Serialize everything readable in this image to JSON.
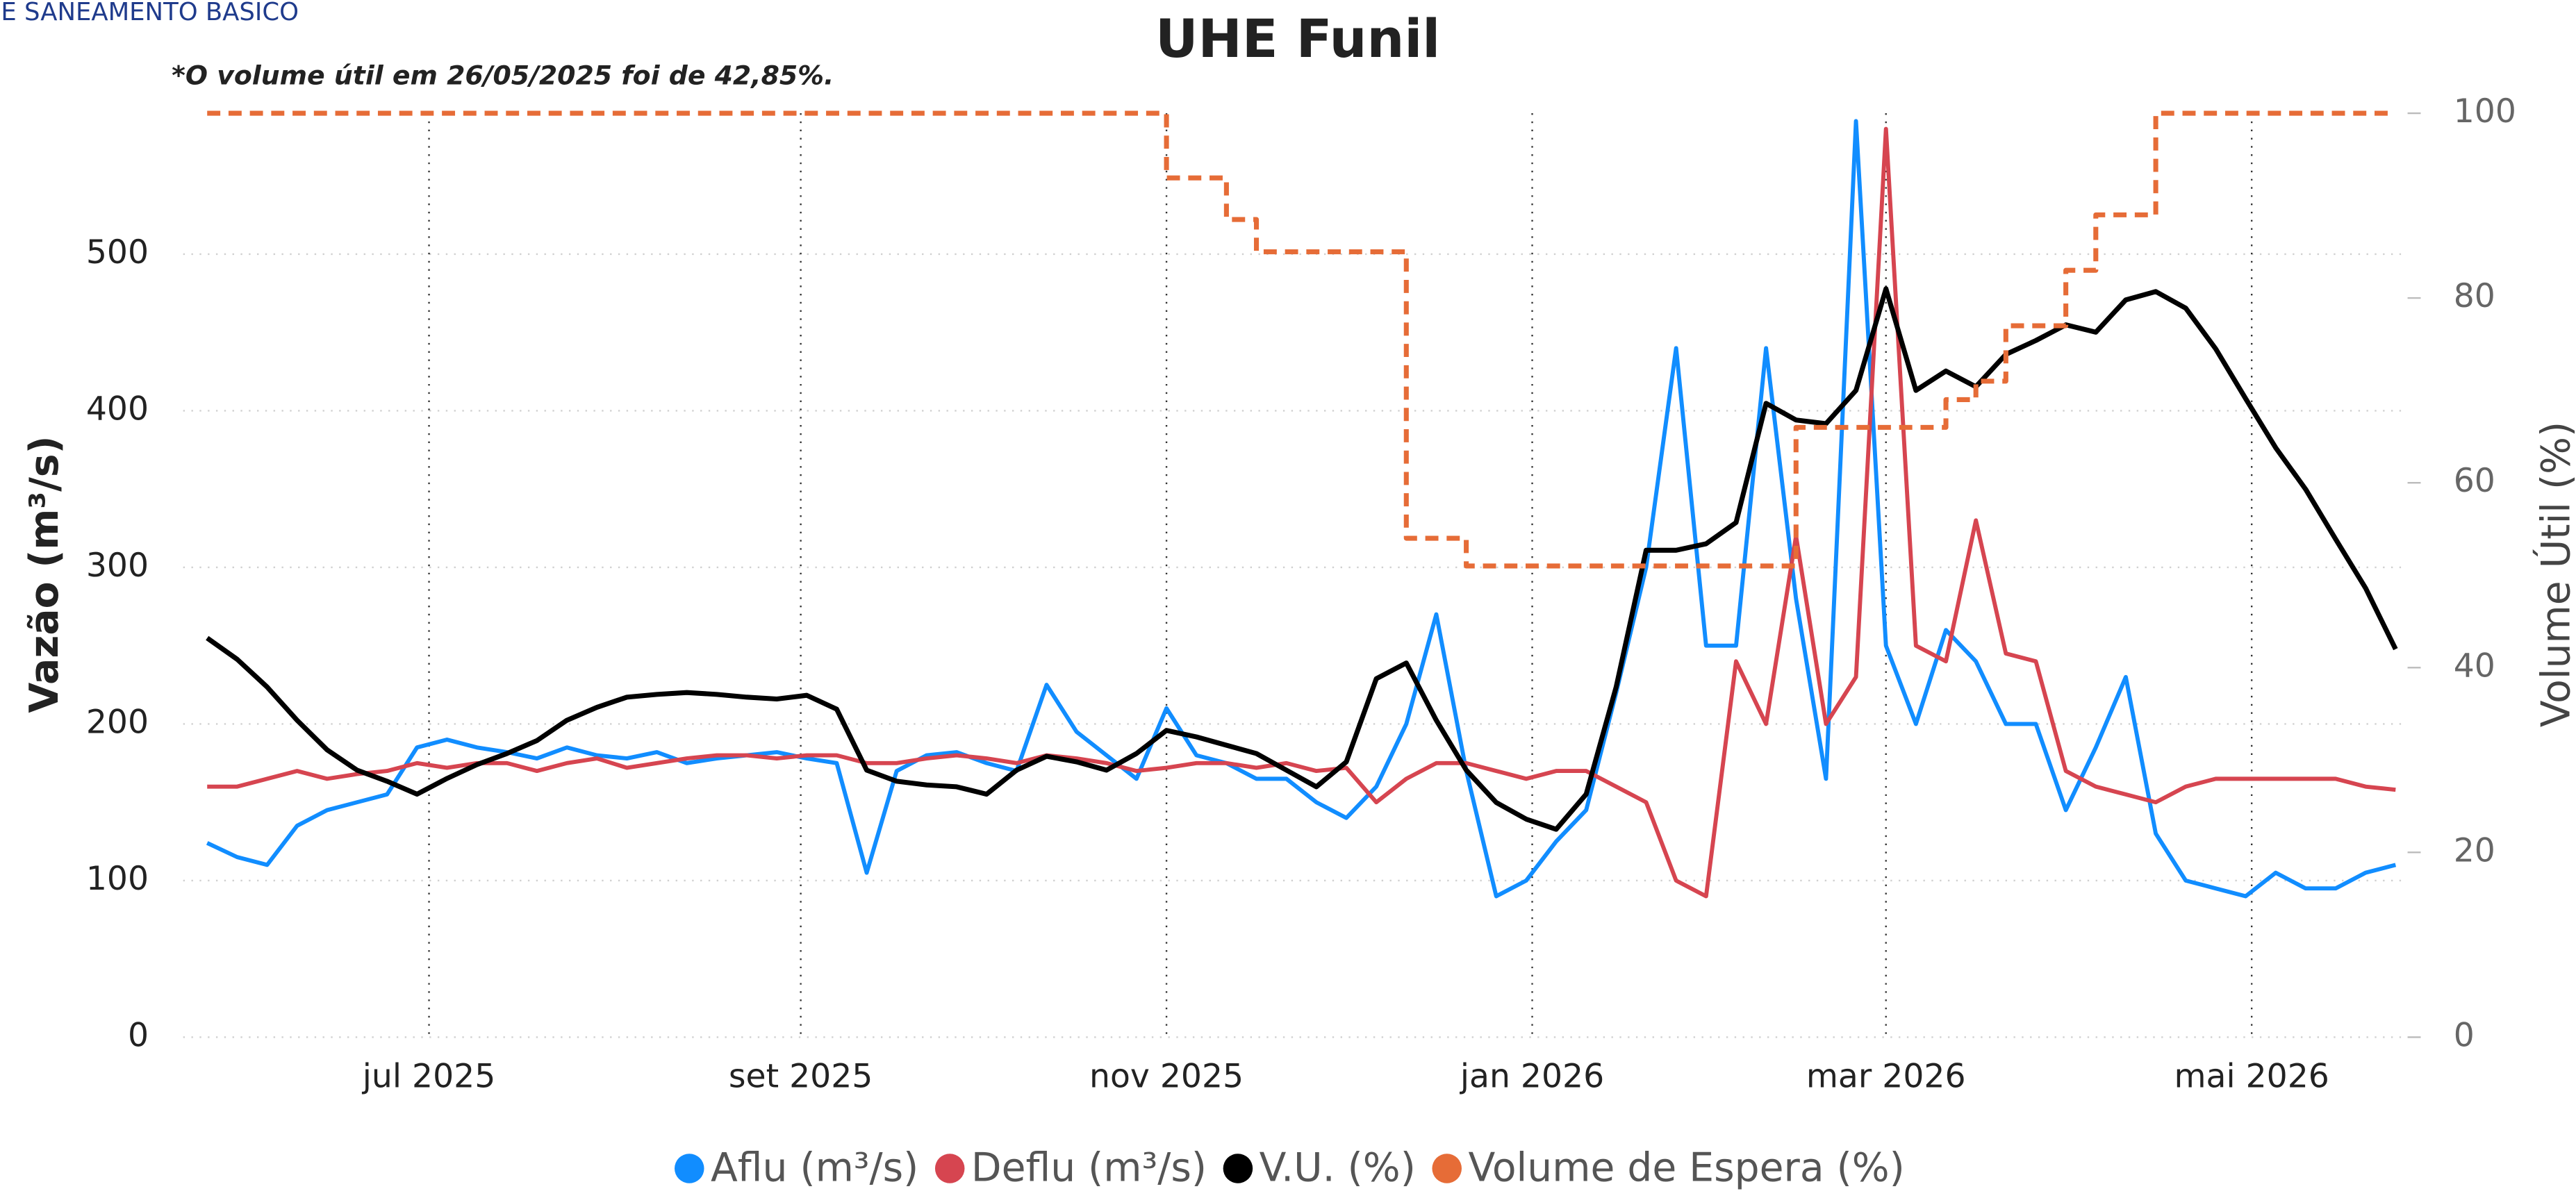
{
  "header": "E SANEAMENTO BASICO",
  "chart_data": {
    "type": "line",
    "title": "UHE Funil",
    "annotation": "*O volume útil em 26/05/2025 foi de 42,85%.",
    "y_label": "Vazão (m³/s)",
    "y2_label": "Volume Útil (%)",
    "x": [
      0,
      5,
      10,
      15,
      20,
      25,
      30,
      35,
      40,
      45,
      50,
      55,
      60,
      65,
      70,
      75,
      80,
      85,
      90,
      95,
      100,
      105,
      110,
      115,
      120,
      125,
      130,
      135,
      140,
      145,
      150,
      155,
      160,
      165,
      170,
      175,
      180,
      185,
      190,
      195,
      200,
      205,
      210,
      215,
      220,
      225,
      230,
      235,
      240,
      245,
      250,
      255,
      260,
      265,
      270,
      275,
      280,
      285,
      290,
      295,
      300,
      305,
      310,
      315,
      320,
      325,
      330,
      335,
      340,
      345,
      350,
      355,
      360,
      365
    ],
    "xlim": [
      -4,
      367
    ],
    "xticks": [
      {
        "value": 37,
        "label": "jul 2025"
      },
      {
        "value": 99,
        "label": "set 2025"
      },
      {
        "value": 160,
        "label": "nov 2025"
      },
      {
        "value": 221,
        "label": "jan 2026"
      },
      {
        "value": 280,
        "label": "mar 2026"
      },
      {
        "value": 341,
        "label": "mai 2026"
      }
    ],
    "ylim": [
      0,
      590
    ],
    "yticks": [
      0,
      100,
      200,
      300,
      400,
      500
    ],
    "y2lim": [
      0,
      100
    ],
    "y2ticks": [
      0,
      20,
      40,
      60,
      80,
      100
    ],
    "grid": true,
    "legend": "bottom",
    "series": [
      {
        "name": "Aflu (m³/s)",
        "color": "#118dff",
        "values": [
          124,
          115,
          110,
          135,
          145,
          150,
          155,
          185,
          190,
          185,
          182,
          178,
          185,
          180,
          178,
          182,
          175,
          178,
          180,
          182,
          178,
          175,
          105,
          170,
          180,
          182,
          175,
          170,
          225,
          195,
          180,
          165,
          210,
          180,
          175,
          165,
          165,
          150,
          140,
          160,
          200,
          270,
          170,
          90,
          100,
          125,
          145,
          220,
          300,
          440,
          250,
          250,
          440,
          280,
          165,
          585,
          250,
          200,
          260,
          240,
          200,
          200,
          145,
          185,
          230,
          130,
          100,
          95,
          90,
          105,
          95,
          95,
          105,
          110
        ]
      },
      {
        "name": "Deflu (m³/s)",
        "color": "#d64550",
        "values": [
          160,
          160,
          165,
          170,
          165,
          168,
          170,
          175,
          172,
          175,
          175,
          170,
          175,
          178,
          172,
          175,
          178,
          180,
          180,
          178,
          180,
          180,
          175,
          175,
          178,
          180,
          178,
          175,
          180,
          178,
          175,
          170,
          172,
          175,
          175,
          172,
          175,
          170,
          172,
          150,
          165,
          175,
          175,
          170,
          165,
          170,
          170,
          160,
          150,
          100,
          90,
          240,
          200,
          320,
          200,
          230,
          580,
          250,
          240,
          330,
          245,
          240,
          170,
          160,
          155,
          150,
          160,
          165,
          165,
          165,
          165,
          165,
          160,
          158
        ]
      },
      {
        "name": "V.U. (%)",
        "color": "#000000",
        "axis": "y2",
        "values": [
          43.2,
          40.9,
          37.9,
          34.3,
          31.1,
          28.9,
          27.7,
          26.3,
          28,
          29.5,
          30.7,
          32.1,
          34.3,
          35.7,
          36.8,
          37.1,
          37.3,
          37.1,
          36.8,
          36.6,
          37,
          35.5,
          28.9,
          27.7,
          27.3,
          27.1,
          26.3,
          28.9,
          30.4,
          29.8,
          28.9,
          30.7,
          33.2,
          32.5,
          31.6,
          30.7,
          28.9,
          27.1,
          29.8,
          38.8,
          40.5,
          34.3,
          28.9,
          25.4,
          23.6,
          22.5,
          26.3,
          37.9,
          52.7,
          52.7,
          53.4,
          55.7,
          68.6,
          66.8,
          66.4,
          70,
          81,
          70,
          72.1,
          70.4,
          73.9,
          75.4,
          77.1,
          76.3,
          79.8,
          80.7,
          78.9,
          74.5,
          69.1,
          63.8,
          59.3,
          53.9,
          48.6,
          42
        ]
      },
      {
        "name": "Volume de Espera (%)",
        "color": "#e66c37",
        "axis": "y2",
        "step": true,
        "dashed": true,
        "values": [
          100,
          100,
          100,
          100,
          100,
          100,
          100,
          100,
          100,
          100,
          100,
          100,
          100,
          100,
          100,
          100,
          100,
          100,
          100,
          100,
          100,
          100,
          100,
          100,
          100,
          100,
          100,
          100,
          100,
          100,
          100,
          100,
          93,
          93,
          88.5,
          85,
          85,
          85,
          85,
          85,
          54,
          54,
          51,
          51,
          51,
          51,
          51,
          51,
          51,
          51,
          51,
          51,
          51,
          66,
          66,
          66,
          66,
          66,
          69,
          71,
          77,
          77,
          83,
          89,
          89,
          100,
          100,
          100,
          100,
          100,
          100,
          100,
          100,
          100
        ]
      }
    ]
  }
}
